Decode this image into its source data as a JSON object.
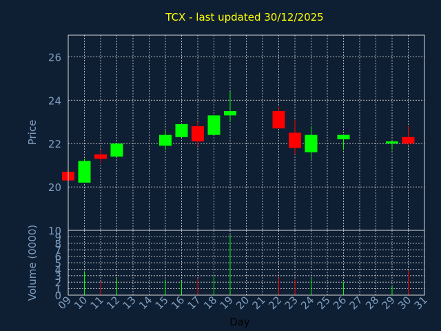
{
  "chart_data": {
    "type": "candlestick",
    "title": "TCX - last updated 30/12/2025",
    "xlabel": "Day",
    "price_ylabel": "Price",
    "volume_ylabel": "Volume (0000)",
    "x_ticks": [
      "09",
      "10",
      "11",
      "12",
      "13",
      "14",
      "15",
      "16",
      "17",
      "18",
      "19",
      "20",
      "21",
      "22",
      "23",
      "24",
      "25",
      "26",
      "27",
      "28",
      "29",
      "30",
      "31"
    ],
    "price_ticks": [
      20,
      22,
      24,
      26
    ],
    "price_ylim": [
      18.0,
      27.0
    ],
    "volume_ticks": [
      0,
      1,
      2,
      3,
      4,
      5,
      6,
      7,
      8,
      9,
      10
    ],
    "volume_ylim": [
      0,
      10
    ],
    "up_color": "#00ff00",
    "down_color": "#ff0000",
    "candles": [
      {
        "day": 9,
        "open": 20.7,
        "high": 20.7,
        "low": 20.3,
        "close": 20.3,
        "volume": 0
      },
      {
        "day": 10,
        "open": 20.2,
        "high": 21.3,
        "low": 20.2,
        "close": 21.2,
        "volume": 3.7
      },
      {
        "day": 11,
        "open": 21.5,
        "high": 21.7,
        "low": 21.1,
        "close": 21.3,
        "volume": 2.1
      },
      {
        "day": 12,
        "open": 21.4,
        "high": 22.0,
        "low": 21.4,
        "close": 22.0,
        "volume": 2.6
      },
      {
        "day": 15,
        "open": 21.9,
        "high": 22.6,
        "low": 21.7,
        "close": 22.4,
        "volume": 2.4
      },
      {
        "day": 16,
        "open": 22.3,
        "high": 22.9,
        "low": 22.3,
        "close": 22.9,
        "volume": 2.1
      },
      {
        "day": 17,
        "open": 22.8,
        "high": 23.0,
        "low": 21.9,
        "close": 22.1,
        "volume": 2.5
      },
      {
        "day": 18,
        "open": 22.4,
        "high": 23.3,
        "low": 22.4,
        "close": 23.3,
        "volume": 2.9
      },
      {
        "day": 19,
        "open": 23.3,
        "high": 24.4,
        "low": 23.0,
        "close": 23.5,
        "volume": 9.3
      },
      {
        "day": 22,
        "open": 23.5,
        "high": 23.7,
        "low": 22.7,
        "close": 22.7,
        "volume": 2.7
      },
      {
        "day": 23,
        "open": 22.5,
        "high": 23.1,
        "low": 21.5,
        "close": 21.8,
        "volume": 2.4
      },
      {
        "day": 24,
        "open": 21.6,
        "high": 22.8,
        "low": 21.3,
        "close": 22.4,
        "volume": 2.6
      },
      {
        "day": 26,
        "open": 22.2,
        "high": 22.4,
        "low": 21.7,
        "close": 22.4,
        "volume": 2.0
      },
      {
        "day": 29,
        "open": 22.0,
        "high": 22.1,
        "low": 21.7,
        "close": 22.1,
        "volume": 1.3
      },
      {
        "day": 30,
        "open": 22.3,
        "high": 22.8,
        "low": 21.9,
        "close": 22.0,
        "volume": 3.8
      }
    ]
  }
}
